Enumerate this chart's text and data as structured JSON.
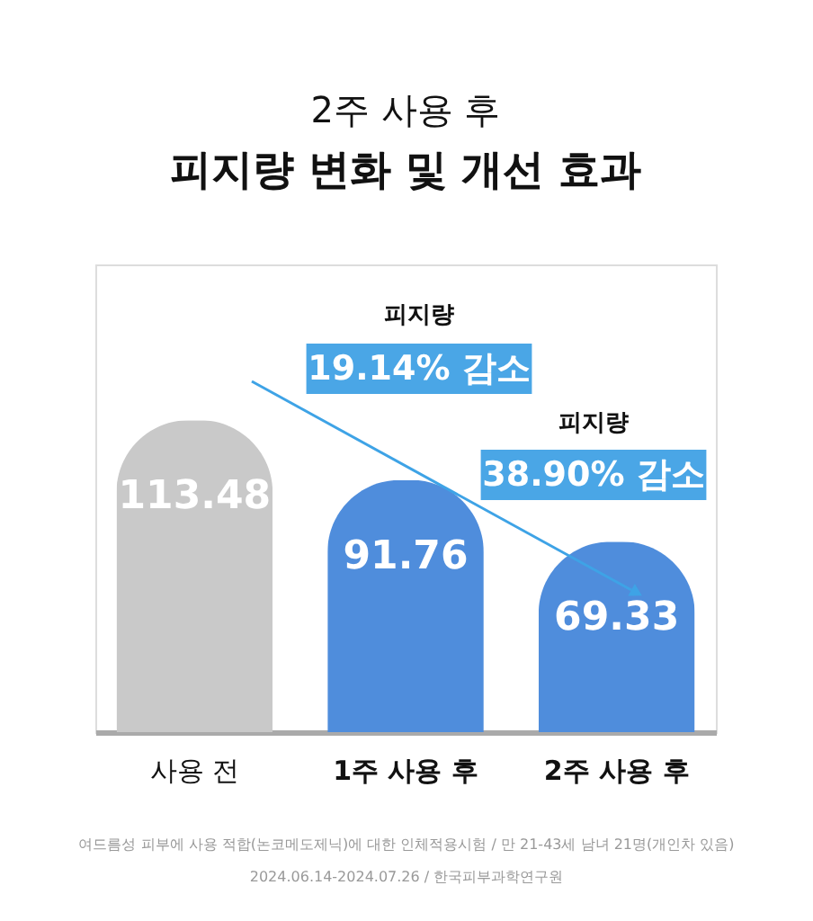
{
  "chart_data": {
    "type": "bar",
    "title": "2주 사용 후",
    "subtitle": "피지량 변화 및 개선 효과",
    "categories": [
      "사용 전",
      "1주 사용 후",
      "2주 사용 후"
    ],
    "values": [
      113.48,
      91.76,
      69.33
    ],
    "colors": [
      "#c9c9c9",
      "#4f8ddc",
      "#4f8ddc"
    ],
    "data_labels": true,
    "annotations": [
      "피지량",
      "19.14% 감소",
      "피지량",
      "38.90% 감소",
      "여드름성 피부에 사용 적합(논코메도제닉)에 대한 인체적용시험 / 만 21-43세 남녀 21명(개인차 있음)",
      "2024.06.14-2024.07.26 / 한국피부과학연구원"
    ]
  }
}
